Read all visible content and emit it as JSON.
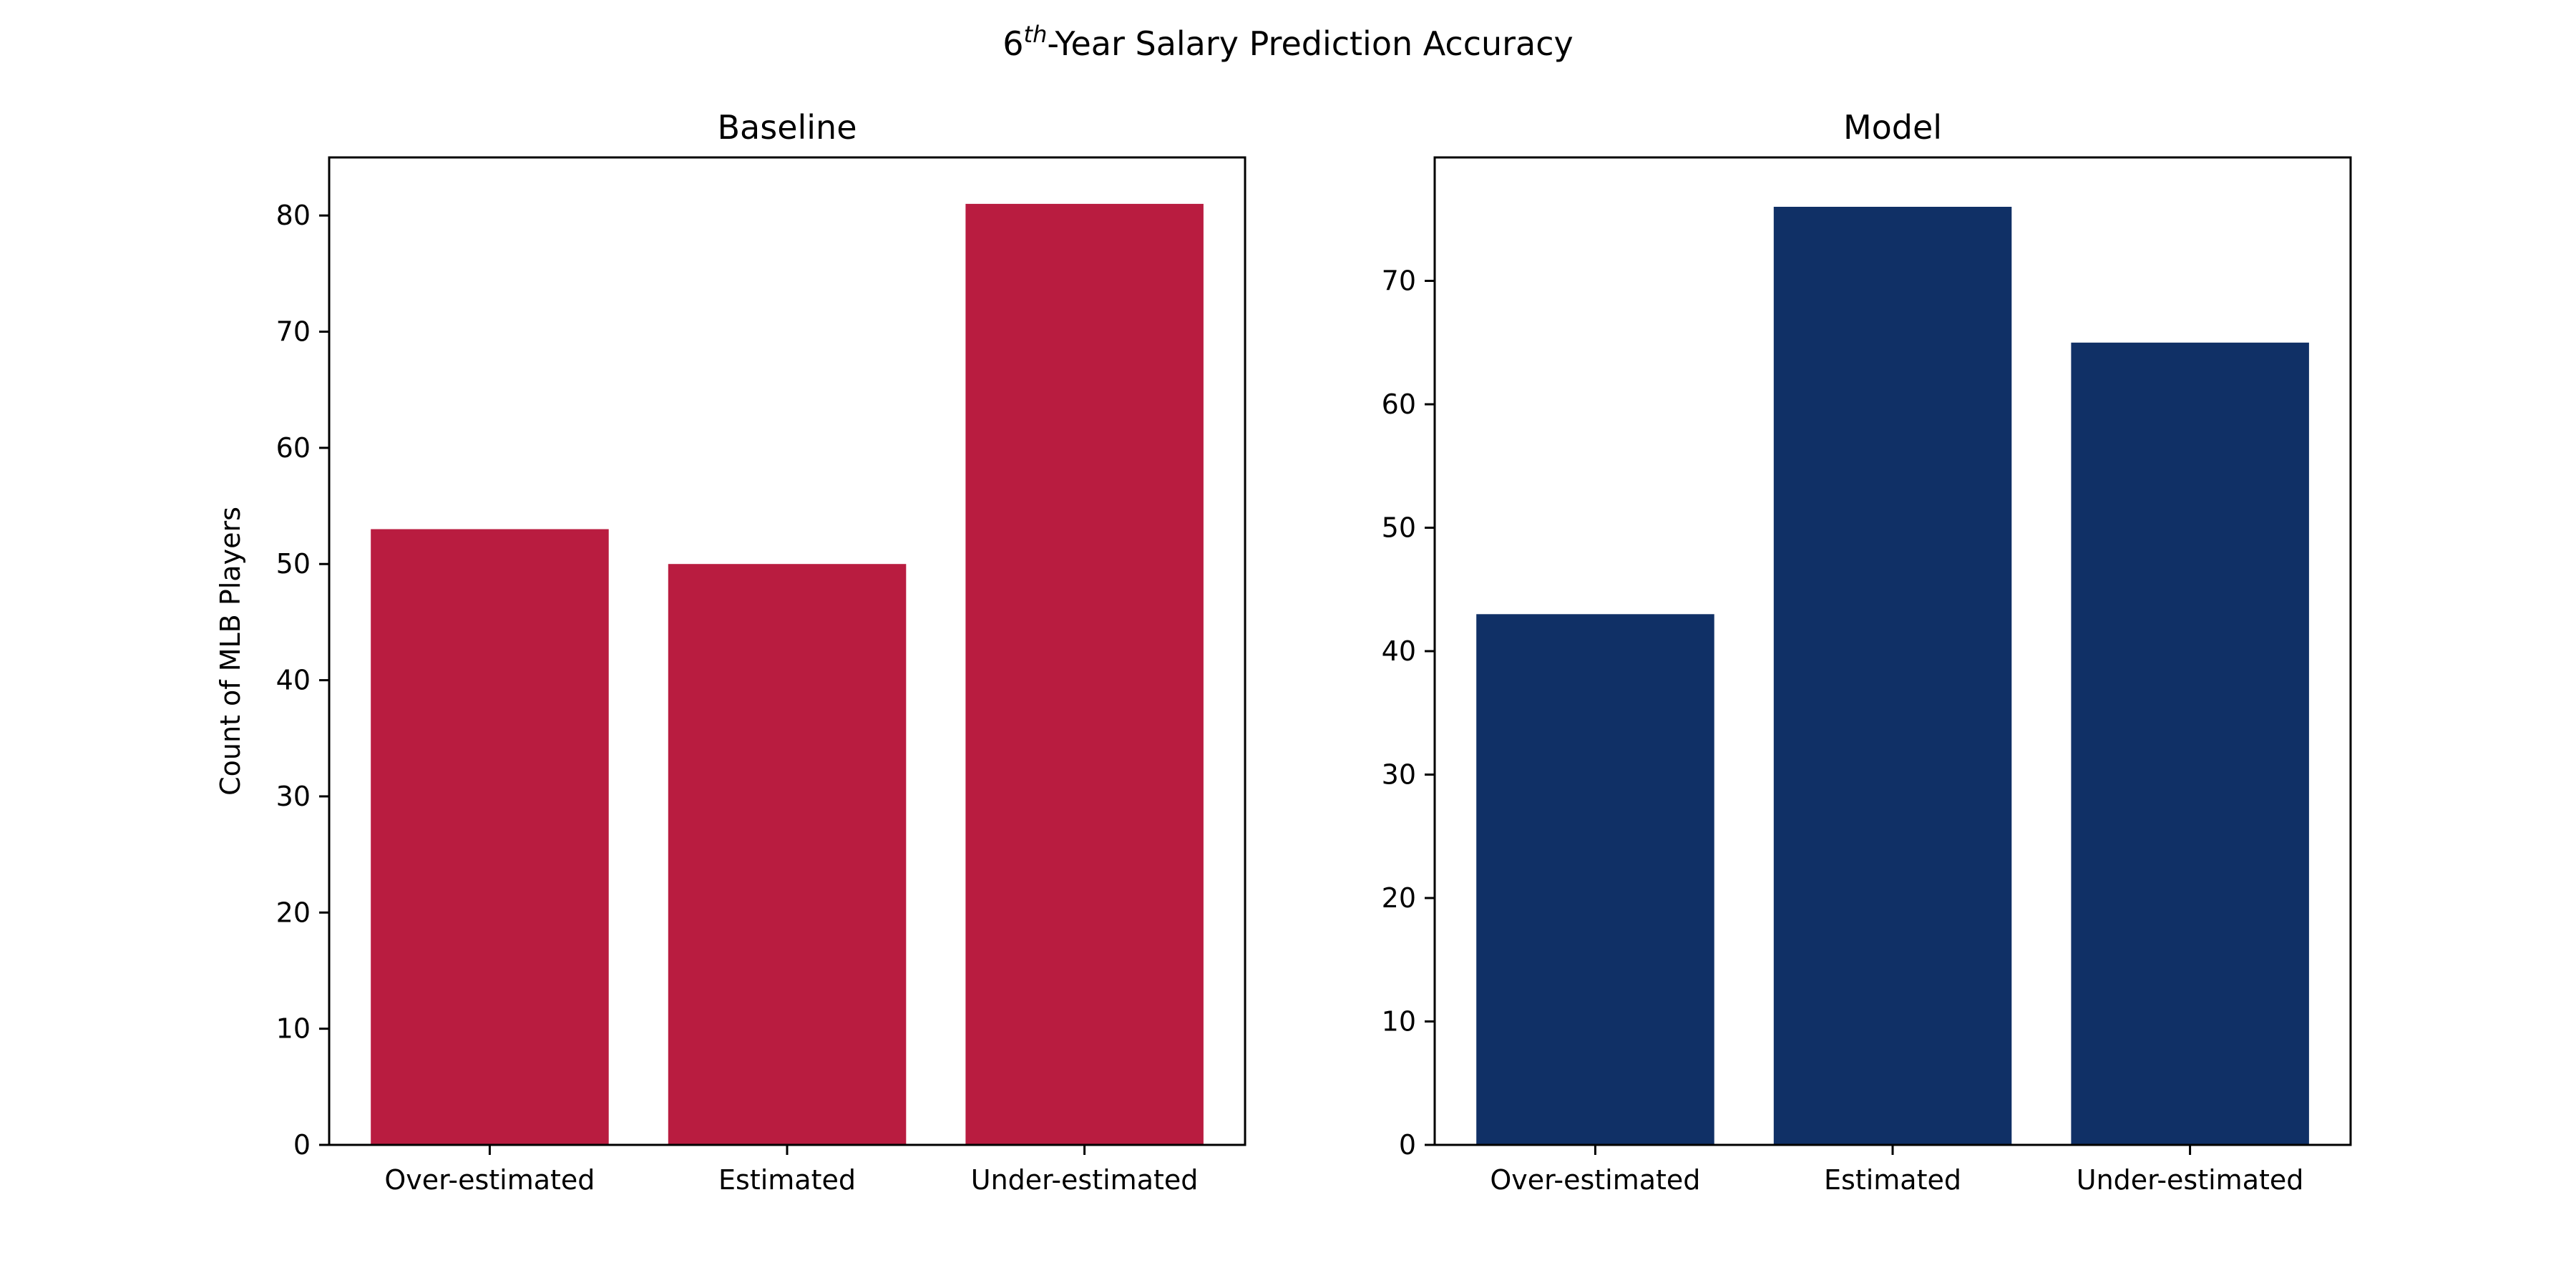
{
  "chart_data": {
    "suptitle": {
      "base": "6",
      "superscript": "th",
      "rest": "-Year Salary Prediction Accuracy"
    },
    "panels": [
      {
        "type": "bar",
        "title": "Baseline",
        "categories": [
          "Over-estimated",
          "Estimated",
          "Under-estimated"
        ],
        "values": [
          53,
          50,
          81
        ],
        "ylabel": "Count of MLB Players",
        "xlabel": "",
        "ylim": [
          0,
          85
        ],
        "yticks": [
          0,
          10,
          20,
          30,
          40,
          50,
          60,
          70,
          80
        ],
        "color": "#b91c40",
        "grid": false
      },
      {
        "type": "bar",
        "title": "Model",
        "categories": [
          "Over-estimated",
          "Estimated",
          "Under-estimated"
        ],
        "values": [
          43,
          76,
          65
        ],
        "ylabel": "",
        "xlabel": "",
        "ylim": [
          0,
          80
        ],
        "yticks": [
          0,
          10,
          20,
          30,
          40,
          50,
          60,
          70
        ],
        "color": "#103066",
        "grid": false
      }
    ]
  }
}
